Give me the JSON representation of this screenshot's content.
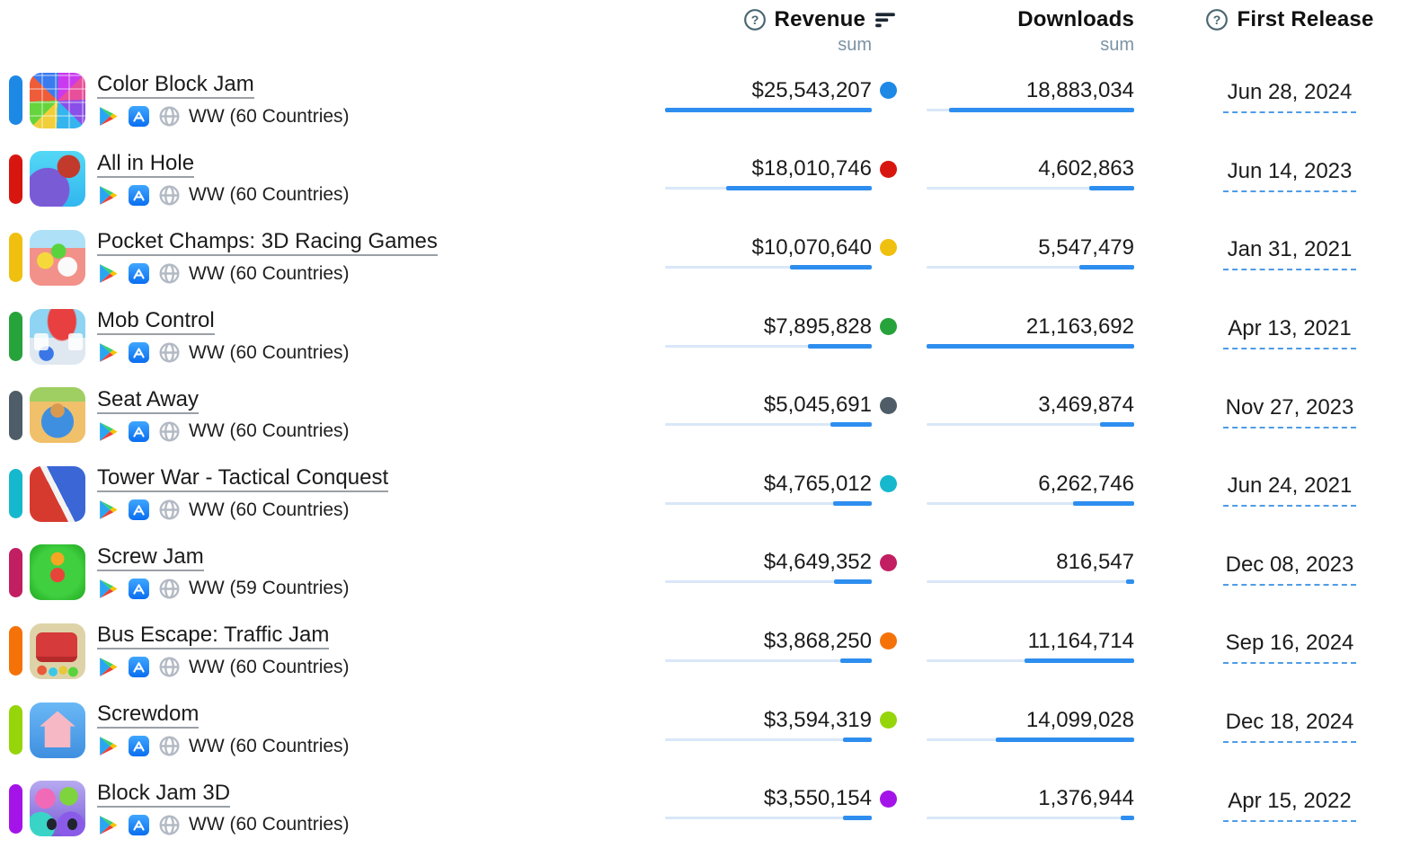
{
  "header": {
    "revenue": {
      "label": "Revenue",
      "aggregate": "sum"
    },
    "downloads": {
      "label": "Downloads",
      "aggregate": "sum"
    },
    "first_release": {
      "label": "First Release"
    }
  },
  "icons": {
    "revenue_help": "question-circle-icon",
    "revenue_sort": "sort-descending-icon",
    "first_release_help": "question-circle-icon",
    "store_google_play": "google-play-icon",
    "store_app_store": "app-store-icon",
    "region_globe": "globe-icon"
  },
  "colors": {
    "bar_fill": "#2e8eef",
    "bar_track": "#d9e7f8",
    "date_underline": "#4e9ce8",
    "name_underline": "#9aa0a6",
    "header_sub_text": "#7b93a4"
  },
  "rows": [
    {
      "name": "Color Block Jam",
      "region": "WW (60 Countries)",
      "revenue": "$25,543,207",
      "downloads": "18,883,034",
      "first_release": "Jun 28, 2024",
      "series_color": "#1e88e5",
      "icon_key": "color-block-jam"
    },
    {
      "name": "All in Hole",
      "region": "WW (60 Countries)",
      "revenue": "$18,010,746",
      "downloads": "4,602,863",
      "first_release": "Jun 14, 2023",
      "series_color": "#d7160f",
      "icon_key": "all-in-hole"
    },
    {
      "name": "Pocket Champs: 3D Racing Games",
      "region": "WW (60 Countries)",
      "revenue": "$10,070,640",
      "downloads": "5,547,479",
      "first_release": "Jan 31, 2021",
      "series_color": "#f0c010",
      "icon_key": "pocket-champs"
    },
    {
      "name": "Mob Control",
      "region": "WW (60 Countries)",
      "revenue": "$7,895,828",
      "downloads": "21,163,692",
      "first_release": "Apr 13, 2021",
      "series_color": "#27a33b",
      "icon_key": "mob-control"
    },
    {
      "name": "Seat Away",
      "region": "WW (60 Countries)",
      "revenue": "$5,045,691",
      "downloads": "3,469,874",
      "first_release": "Nov 27, 2023",
      "series_color": "#4e5d67",
      "icon_key": "seat-away"
    },
    {
      "name": "Tower War - Tactical Conquest",
      "region": "WW (60 Countries)",
      "revenue": "$4,765,012",
      "downloads": "6,262,746",
      "first_release": "Jun 24, 2021",
      "series_color": "#16b8ce",
      "icon_key": "tower-war"
    },
    {
      "name": "Screw Jam",
      "region": "WW (59 Countries)",
      "revenue": "$4,649,352",
      "downloads": "816,547",
      "first_release": "Dec 08, 2023",
      "series_color": "#c21e62",
      "icon_key": "screw-jam"
    },
    {
      "name": "Bus Escape: Traffic Jam",
      "region": "WW (60 Countries)",
      "revenue": "$3,868,250",
      "downloads": "11,164,714",
      "first_release": "Sep 16, 2024",
      "series_color": "#f57208",
      "icon_key": "bus-escape"
    },
    {
      "name": "Screwdom",
      "region": "WW (60 Countries)",
      "revenue": "$3,594,319",
      "downloads": "14,099,028",
      "first_release": "Dec 18, 2024",
      "series_color": "#95d509",
      "icon_key": "screwdom"
    },
    {
      "name": "Block Jam 3D",
      "region": "WW (60 Countries)",
      "revenue": "$3,550,154",
      "downloads": "1,376,944",
      "first_release": "Apr 15, 2022",
      "series_color": "#a414e8",
      "icon_key": "block-jam-3d"
    }
  ]
}
